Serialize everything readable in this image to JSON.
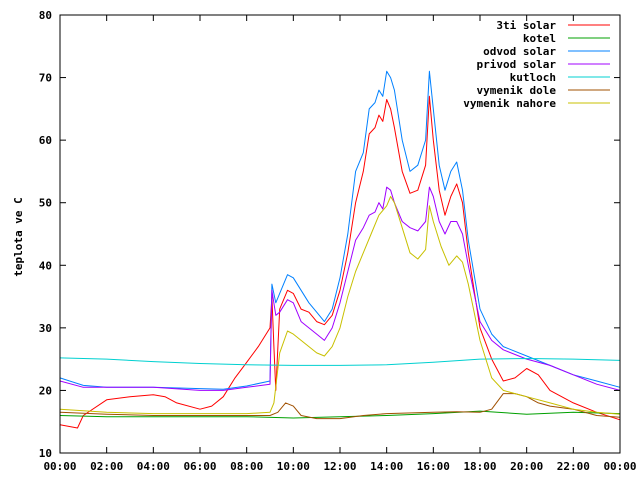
{
  "chart_data": {
    "type": "line",
    "title": "",
    "xlabel": "",
    "ylabel": "teplota ve C",
    "x_range": [
      "00:00",
      "24:00"
    ],
    "ylim": [
      10,
      80
    ],
    "grid": false,
    "legend_placement": "top-right",
    "x_ticks": [
      "00:00",
      "02:00",
      "04:00",
      "06:00",
      "08:00",
      "10:00",
      "12:00",
      "14:00",
      "16:00",
      "18:00",
      "20:00",
      "22:00",
      "00:00"
    ],
    "y_ticks": [
      10,
      20,
      30,
      40,
      50,
      60,
      70,
      80
    ],
    "series": [
      {
        "name": "3ti solar",
        "color": "#ff0000",
        "points": [
          [
            "00:00",
            14.5
          ],
          [
            "00:45",
            14.0
          ],
          [
            "01:00",
            16.0
          ],
          [
            "02:00",
            18.5
          ],
          [
            "03:00",
            19.0
          ],
          [
            "04:00",
            19.3
          ],
          [
            "04:30",
            19.0
          ],
          [
            "05:00",
            18.0
          ],
          [
            "06:00",
            17.0
          ],
          [
            "06:30",
            17.5
          ],
          [
            "07:00",
            19.0
          ],
          [
            "07:30",
            22.0
          ],
          [
            "08:00",
            24.5
          ],
          [
            "08:30",
            27.0
          ],
          [
            "09:00",
            30.0
          ],
          [
            "09:05",
            35.0
          ],
          [
            "09:10",
            27.0
          ],
          [
            "09:15",
            20.0
          ],
          [
            "09:25",
            33.0
          ],
          [
            "09:45",
            36.0
          ],
          [
            "10:00",
            35.5
          ],
          [
            "10:20",
            33.0
          ],
          [
            "10:40",
            32.5
          ],
          [
            "11:00",
            31.0
          ],
          [
            "11:20",
            30.5
          ],
          [
            "11:40",
            32.0
          ],
          [
            "12:00",
            36.0
          ],
          [
            "12:20",
            42.0
          ],
          [
            "12:40",
            50.0
          ],
          [
            "13:00",
            55.0
          ],
          [
            "13:15",
            61.0
          ],
          [
            "13:30",
            62.0
          ],
          [
            "13:40",
            64.0
          ],
          [
            "13:50",
            63.0
          ],
          [
            "14:00",
            66.5
          ],
          [
            "14:10",
            65.0
          ],
          [
            "14:20",
            62.0
          ],
          [
            "14:40",
            55.0
          ],
          [
            "15:00",
            51.5
          ],
          [
            "15:20",
            52.0
          ],
          [
            "15:40",
            56.0
          ],
          [
            "15:50",
            67.0
          ],
          [
            "16:00",
            60.0
          ],
          [
            "16:15",
            52.0
          ],
          [
            "16:30",
            48.0
          ],
          [
            "16:45",
            51.0
          ],
          [
            "17:00",
            53.0
          ],
          [
            "17:15",
            50.0
          ],
          [
            "17:30",
            42.0
          ],
          [
            "18:00",
            30.0
          ],
          [
            "18:30",
            25.0
          ],
          [
            "19:00",
            21.5
          ],
          [
            "19:30",
            22.0
          ],
          [
            "20:00",
            23.5
          ],
          [
            "20:30",
            22.5
          ],
          [
            "21:00",
            20.0
          ],
          [
            "22:00",
            18.0
          ],
          [
            "23:00",
            16.5
          ],
          [
            "24:00",
            15.3
          ]
        ]
      },
      {
        "name": "kotel",
        "color": "#00a000",
        "points": [
          [
            "00:00",
            16.0
          ],
          [
            "02:00",
            15.8
          ],
          [
            "04:00",
            15.8
          ],
          [
            "06:00",
            15.8
          ],
          [
            "08:00",
            15.8
          ],
          [
            "10:00",
            15.6
          ],
          [
            "12:00",
            15.8
          ],
          [
            "14:00",
            16.0
          ],
          [
            "16:00",
            16.3
          ],
          [
            "18:00",
            16.7
          ],
          [
            "20:00",
            16.2
          ],
          [
            "22:00",
            16.5
          ],
          [
            "24:00",
            16.3
          ]
        ]
      },
      {
        "name": "odvod solar",
        "color": "#0080ff",
        "points": [
          [
            "00:00",
            22.0
          ],
          [
            "01:00",
            20.8
          ],
          [
            "02:00",
            20.5
          ],
          [
            "04:00",
            20.5
          ],
          [
            "06:00",
            20.3
          ],
          [
            "07:00",
            20.2
          ],
          [
            "08:00",
            20.7
          ],
          [
            "09:00",
            21.5
          ],
          [
            "09:05",
            37.0
          ],
          [
            "09:15",
            34.0
          ],
          [
            "09:25",
            35.5
          ],
          [
            "09:45",
            38.5
          ],
          [
            "10:00",
            38.0
          ],
          [
            "10:20",
            36.0
          ],
          [
            "10:40",
            34.0
          ],
          [
            "11:00",
            32.5
          ],
          [
            "11:20",
            31.0
          ],
          [
            "11:40",
            33.0
          ],
          [
            "12:00",
            38.0
          ],
          [
            "12:20",
            45.0
          ],
          [
            "12:40",
            55.0
          ],
          [
            "13:00",
            58.0
          ],
          [
            "13:15",
            65.0
          ],
          [
            "13:30",
            66.0
          ],
          [
            "13:40",
            68.0
          ],
          [
            "13:50",
            67.0
          ],
          [
            "14:00",
            71.0
          ],
          [
            "14:10",
            70.0
          ],
          [
            "14:20",
            68.0
          ],
          [
            "14:40",
            60.0
          ],
          [
            "15:00",
            55.0
          ],
          [
            "15:20",
            56.0
          ],
          [
            "15:40",
            60.0
          ],
          [
            "15:50",
            71.0
          ],
          [
            "16:00",
            65.0
          ],
          [
            "16:15",
            56.0
          ],
          [
            "16:30",
            52.0
          ],
          [
            "16:45",
            55.0
          ],
          [
            "17:00",
            56.5
          ],
          [
            "17:15",
            52.0
          ],
          [
            "17:30",
            44.0
          ],
          [
            "18:00",
            33.0
          ],
          [
            "18:30",
            29.0
          ],
          [
            "19:00",
            27.0
          ],
          [
            "20:00",
            25.5
          ],
          [
            "21:00",
            24.0
          ],
          [
            "22:00",
            22.5
          ],
          [
            "23:00",
            21.5
          ],
          [
            "24:00",
            20.5
          ]
        ]
      },
      {
        "name": "privod solar",
        "color": "#a000ff",
        "points": [
          [
            "00:00",
            21.5
          ],
          [
            "01:00",
            20.5
          ],
          [
            "02:00",
            20.5
          ],
          [
            "04:00",
            20.5
          ],
          [
            "06:00",
            20.0
          ],
          [
            "07:00",
            20.0
          ],
          [
            "08:00",
            20.5
          ],
          [
            "09:00",
            21.0
          ],
          [
            "09:05",
            36.0
          ],
          [
            "09:15",
            32.0
          ],
          [
            "09:25",
            32.5
          ],
          [
            "09:45",
            34.5
          ],
          [
            "10:00",
            34.0
          ],
          [
            "10:20",
            31.0
          ],
          [
            "10:40",
            30.0
          ],
          [
            "11:00",
            29.0
          ],
          [
            "11:20",
            28.0
          ],
          [
            "11:40",
            30.0
          ],
          [
            "12:00",
            34.0
          ],
          [
            "12:20",
            39.0
          ],
          [
            "12:40",
            44.0
          ],
          [
            "13:00",
            46.0
          ],
          [
            "13:15",
            48.0
          ],
          [
            "13:30",
            48.5
          ],
          [
            "13:40",
            50.0
          ],
          [
            "13:50",
            49.0
          ],
          [
            "14:00",
            52.5
          ],
          [
            "14:10",
            52.0
          ],
          [
            "14:20",
            50.0
          ],
          [
            "14:40",
            47.0
          ],
          [
            "15:00",
            46.0
          ],
          [
            "15:20",
            45.5
          ],
          [
            "15:40",
            47.0
          ],
          [
            "15:50",
            52.5
          ],
          [
            "16:00",
            51.0
          ],
          [
            "16:15",
            47.0
          ],
          [
            "16:30",
            45.0
          ],
          [
            "16:45",
            47.0
          ],
          [
            "17:00",
            47.0
          ],
          [
            "17:15",
            45.0
          ],
          [
            "17:30",
            40.0
          ],
          [
            "18:00",
            31.0
          ],
          [
            "18:30",
            28.0
          ],
          [
            "19:00",
            26.5
          ],
          [
            "20:00",
            25.0
          ],
          [
            "21:00",
            24.0
          ],
          [
            "22:00",
            22.5
          ],
          [
            "23:00",
            21.0
          ],
          [
            "24:00",
            20.0
          ]
        ]
      },
      {
        "name": "kutloch",
        "color": "#00d0d0",
        "points": [
          [
            "00:00",
            25.2
          ],
          [
            "02:00",
            25.0
          ],
          [
            "04:00",
            24.6
          ],
          [
            "06:00",
            24.3
          ],
          [
            "08:00",
            24.1
          ],
          [
            "10:00",
            24.0
          ],
          [
            "12:00",
            24.0
          ],
          [
            "14:00",
            24.1
          ],
          [
            "16:00",
            24.5
          ],
          [
            "18:00",
            25.0
          ],
          [
            "20:00",
            25.1
          ],
          [
            "22:00",
            25.0
          ],
          [
            "24:00",
            24.8
          ]
        ]
      },
      {
        "name": "vymenik dole",
        "color": "#a05000",
        "points": [
          [
            "00:00",
            16.5
          ],
          [
            "02:00",
            16.2
          ],
          [
            "04:00",
            16.0
          ],
          [
            "06:00",
            16.0
          ],
          [
            "08:00",
            16.0
          ],
          [
            "09:00",
            16.0
          ],
          [
            "09:20",
            16.5
          ],
          [
            "09:40",
            18.0
          ],
          [
            "10:00",
            17.5
          ],
          [
            "10:20",
            16.0
          ],
          [
            "11:00",
            15.5
          ],
          [
            "12:00",
            15.5
          ],
          [
            "13:00",
            16.0
          ],
          [
            "14:00",
            16.3
          ],
          [
            "16:00",
            16.5
          ],
          [
            "17:00",
            16.6
          ],
          [
            "18:00",
            16.5
          ],
          [
            "18:30",
            17.0
          ],
          [
            "19:00",
            19.5
          ],
          [
            "19:30",
            19.5
          ],
          [
            "20:00",
            19.0
          ],
          [
            "20:30",
            18.0
          ],
          [
            "21:00",
            17.5
          ],
          [
            "22:00",
            17.0
          ],
          [
            "23:00",
            16.0
          ],
          [
            "24:00",
            15.7
          ]
        ]
      },
      {
        "name": "vymenik nahore",
        "color": "#c8c000",
        "points": [
          [
            "00:00",
            17.0
          ],
          [
            "02:00",
            16.5
          ],
          [
            "04:00",
            16.3
          ],
          [
            "06:00",
            16.3
          ],
          [
            "08:00",
            16.3
          ],
          [
            "09:00",
            16.5
          ],
          [
            "09:10",
            18.0
          ],
          [
            "09:25",
            26.0
          ],
          [
            "09:45",
            29.5
          ],
          [
            "10:00",
            29.0
          ],
          [
            "10:20",
            28.0
          ],
          [
            "10:40",
            27.0
          ],
          [
            "11:00",
            26.0
          ],
          [
            "11:20",
            25.5
          ],
          [
            "11:40",
            27.0
          ],
          [
            "12:00",
            30.0
          ],
          [
            "12:20",
            35.0
          ],
          [
            "12:40",
            39.0
          ],
          [
            "13:00",
            42.0
          ],
          [
            "13:20",
            45.0
          ],
          [
            "13:40",
            48.0
          ],
          [
            "14:00",
            49.5
          ],
          [
            "14:10",
            51.0
          ],
          [
            "14:20",
            50.0
          ],
          [
            "14:40",
            46.0
          ],
          [
            "15:00",
            42.0
          ],
          [
            "15:20",
            41.0
          ],
          [
            "15:40",
            42.5
          ],
          [
            "15:50",
            49.5
          ],
          [
            "16:00",
            47.0
          ],
          [
            "16:20",
            43.0
          ],
          [
            "16:40",
            40.0
          ],
          [
            "17:00",
            41.5
          ],
          [
            "17:15",
            40.5
          ],
          [
            "17:30",
            37.0
          ],
          [
            "18:00",
            28.0
          ],
          [
            "18:30",
            22.0
          ],
          [
            "19:00",
            20.0
          ],
          [
            "19:30",
            19.5
          ],
          [
            "20:00",
            19.0
          ],
          [
            "21:00",
            18.0
          ],
          [
            "22:00",
            17.0
          ],
          [
            "23:00",
            16.5
          ],
          [
            "24:00",
            16.2
          ]
        ]
      }
    ]
  }
}
